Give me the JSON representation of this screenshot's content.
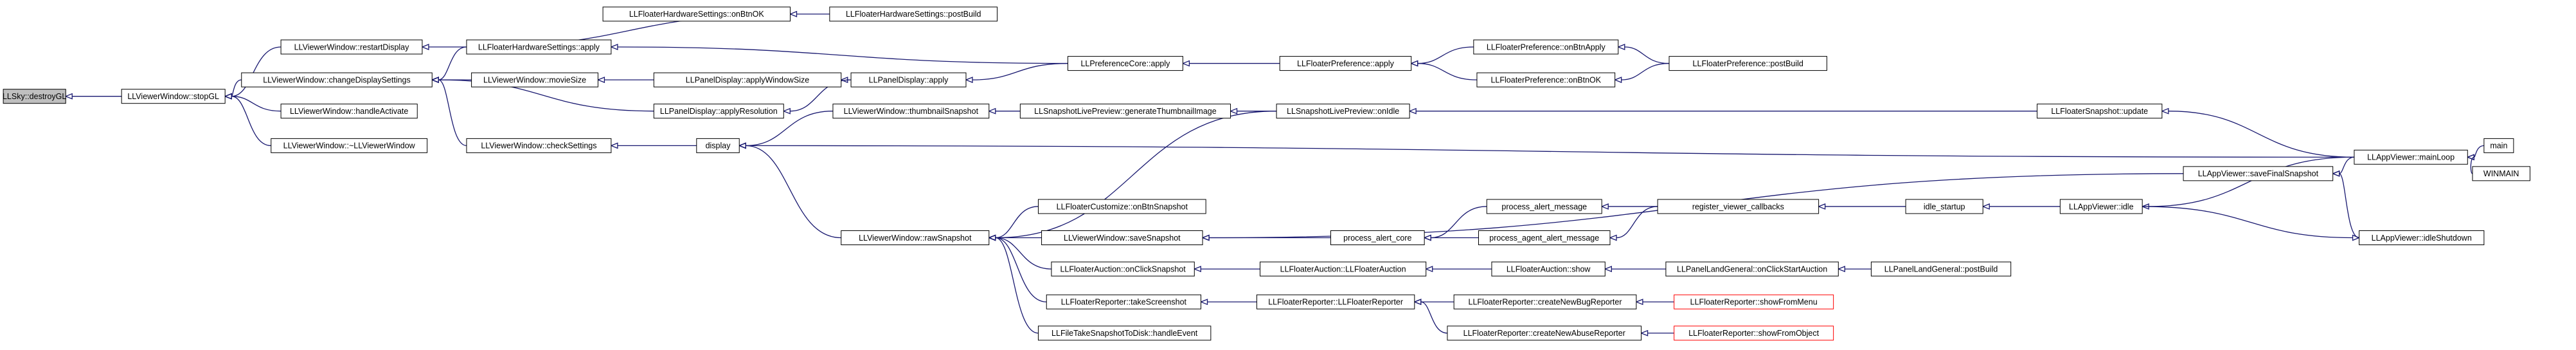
{
  "nodes": [
    {
      "label": "LLSky::destroyGL"
    },
    {
      "label": "LLViewerWindow::stopGL"
    },
    {
      "label": "LLViewerWindow::restartDisplay"
    },
    {
      "label": "LLFloaterHardwareSettings::apply"
    },
    {
      "label": "LLFloaterHardwareSettings::onBtnOK"
    },
    {
      "label": "LLFloaterHardwareSettings::postBuild"
    },
    {
      "label": "LLViewerWindow::changeDisplaySettings"
    },
    {
      "label": "LLViewerWindow::handleActivate"
    },
    {
      "label": "LLViewerWindow::~LLViewerWindow"
    },
    {
      "label": "LLViewerWindow::movieSize"
    },
    {
      "label": "LLPanelDisplay::applyWindowSize"
    },
    {
      "label": "LLPanelDisplay::apply"
    },
    {
      "label": "LLPanelDisplay::applyResolution"
    },
    {
      "label": "LLPreferenceCore::apply"
    },
    {
      "label": "LLFloaterPreference::apply"
    },
    {
      "label": "LLFloaterPreference::onBtnApply"
    },
    {
      "label": "LLFloaterPreference::onBtnOK"
    },
    {
      "label": "LLFloaterPreference::postBuild"
    },
    {
      "label": "LLViewerWindow::checkSettings"
    },
    {
      "label": "display"
    },
    {
      "label": "LLViewerWindow::thumbnailSnapshot"
    },
    {
      "label": "LLSnapshotLivePreview::generateThumbnailImage"
    },
    {
      "label": "LLSnapshotLivePreview::onIdle"
    },
    {
      "label": "LLFloaterSnapshot::update"
    },
    {
      "label": "LLAppViewer::mainLoop"
    },
    {
      "label": "main"
    },
    {
      "label": "WINMAIN"
    },
    {
      "label": "LLAppViewer::saveFinalSnapshot"
    },
    {
      "label": "LLAppViewer::idle"
    },
    {
      "label": "LLAppViewer::idleShutdown"
    },
    {
      "label": "idle_startup"
    },
    {
      "label": "register_viewer_callbacks"
    },
    {
      "label": "process_alert_message"
    },
    {
      "label": "process_agent_alert_message"
    },
    {
      "label": "process_alert_core"
    },
    {
      "label": "LLViewerWindow::rawSnapshot"
    },
    {
      "label": "LLFloaterCustomize::onBtnSnapshot"
    },
    {
      "label": "LLViewerWindow::saveSnapshot"
    },
    {
      "label": "LLFloaterAuction::onClickSnapshot"
    },
    {
      "label": "LLFloaterAuction::LLFloaterAuction"
    },
    {
      "label": "LLFloaterAuction::show"
    },
    {
      "label": "LLPanelLandGeneral::onClickStartAuction"
    },
    {
      "label": "LLPanelLandGeneral::postBuild"
    },
    {
      "label": "LLFloaterReporter::takeScreenshot"
    },
    {
      "label": "LLFloaterReporter::LLFloaterReporter"
    },
    {
      "label": "LLFloaterReporter::createNewBugReporter"
    },
    {
      "label": "LLFloaterReporter::showFromMenu"
    },
    {
      "label": "LLFloaterReporter::createNewAbuseReporter"
    },
    {
      "label": "LLFloaterReporter::showFromObject"
    },
    {
      "label": "LLFileTakeSnapshotToDisk::handleEvent"
    }
  ]
}
